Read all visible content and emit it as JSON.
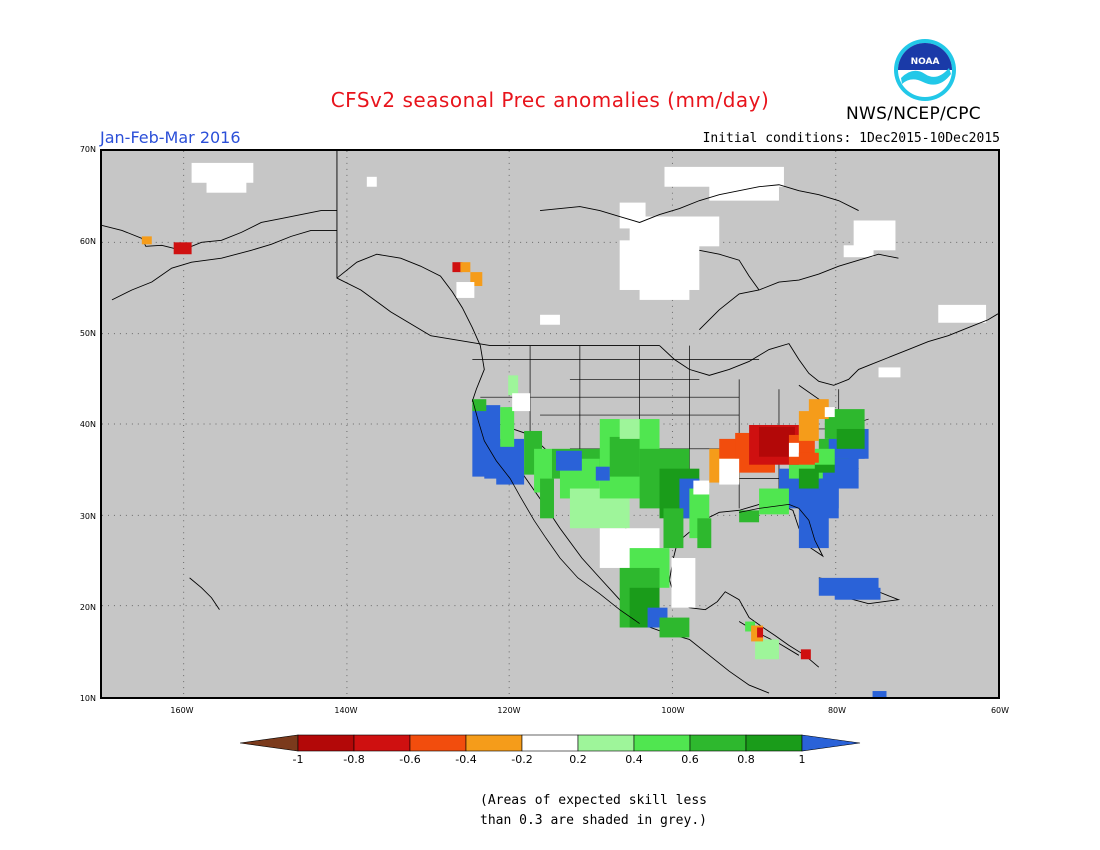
{
  "header": {
    "title": "CFSv2 seasonal Prec anomalies (mm/day)",
    "period": "Jan-Feb-Mar 2016",
    "initial_conditions": "Initial conditions: 1Dec2015-10Dec2015",
    "agency": "NWS/NCEP/CPC",
    "logo_text": "NOAA"
  },
  "map": {
    "lat_labels": [
      "70N",
      "60N",
      "50N",
      "40N",
      "30N",
      "20N",
      "10N"
    ],
    "lon_labels": [
      "160W",
      "140W",
      "120W",
      "100W",
      "80W",
      "60W"
    ],
    "extent": {
      "lon": [
        -170,
        -60
      ],
      "lat": [
        10,
        70
      ]
    },
    "grid_lines": true
  },
  "colorbar": {
    "labels": [
      "-1",
      "-0.8",
      "-0.6",
      "-0.4",
      "-0.2",
      "0.2",
      "0.4",
      "0.6",
      "0.8",
      "1"
    ],
    "colors": [
      "#7b3a1c",
      "#b30808",
      "#cf1010",
      "#f24d0d",
      "#f59c1a",
      "#ffffff",
      "#9ef59a",
      "#50e650",
      "#2eb82e",
      "#1a9c1a",
      "#2a62d8"
    ]
  },
  "note": {
    "line1": "(Areas of expected skill less",
    "line2": "than 0.3 are shaded in grey.)"
  }
}
